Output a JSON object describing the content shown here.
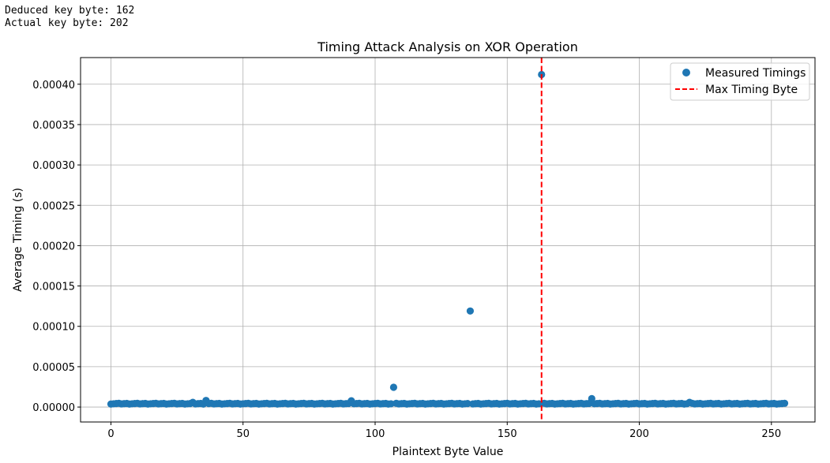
{
  "console": {
    "line1": "Deduced key byte: 162",
    "line2": "Actual key byte: 202"
  },
  "colors": {
    "series": "#1f77b4",
    "vline": "#ff0000",
    "grid": "#b0b0b0"
  },
  "chart_data": {
    "type": "scatter",
    "title": "Timing Attack Analysis on XOR Operation",
    "xlabel": "Plaintext Byte Value",
    "ylabel": "Average Timing (s)",
    "xlim": [
      -11.5,
      266.5
    ],
    "ylim": [
      -1.85e-05,
      0.000433
    ],
    "xticks": [
      0,
      50,
      100,
      150,
      200,
      250
    ],
    "xtick_labels": [
      "0",
      "50",
      "100",
      "150",
      "200",
      "250"
    ],
    "yticks": [
      0,
      5e-05,
      0.0001,
      0.00015,
      0.0002,
      0.00025,
      0.0003,
      0.00035,
      0.0004
    ],
    "ytick_labels": [
      "0.00000",
      "0.00005",
      "0.00010",
      "0.00015",
      "0.00020",
      "0.00025",
      "0.00030",
      "0.00035",
      "0.00040"
    ],
    "grid": true,
    "legend_position": "top-right",
    "series": [
      {
        "name": "Measured Timings",
        "marker": "circle",
        "baseline": 4.2e-06,
        "x_range": [
          0,
          255
        ],
        "outliers": [
          {
            "x": 31,
            "y": 5.8e-06
          },
          {
            "x": 36,
            "y": 8.2e-06
          },
          {
            "x": 91,
            "y": 7.8e-06
          },
          {
            "x": 107,
            "y": 2.45e-05
          },
          {
            "x": 136,
            "y": 0.000119
          },
          {
            "x": 163,
            "y": 0.000412
          },
          {
            "x": 182,
            "y": 1.05e-05
          },
          {
            "x": 219,
            "y": 5.8e-06
          }
        ]
      },
      {
        "name": "Max Timing Byte",
        "type": "vline",
        "x": 163,
        "style": "dashed"
      }
    ]
  }
}
